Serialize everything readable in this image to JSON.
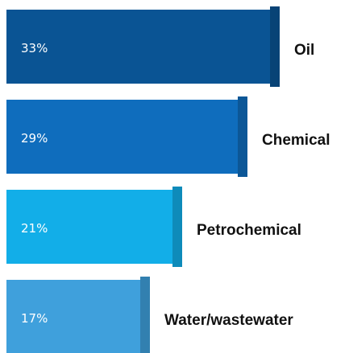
{
  "chart_data": {
    "type": "bar",
    "orientation": "horizontal",
    "categories": [
      "Oil",
      "Chemical",
      "Petrochemical",
      "Water/wastewater"
    ],
    "values": [
      33,
      29,
      21,
      17
    ],
    "value_labels": [
      "33%",
      "29%",
      "21%",
      "17%"
    ],
    "colors": [
      "#0a5494",
      "#0f6dbd",
      "#12aee8",
      "#3fa0dc"
    ],
    "title": "",
    "xlabel": "",
    "ylabel": "",
    "xlim": [
      0,
      33
    ],
    "grid": false,
    "legend": "none"
  }
}
